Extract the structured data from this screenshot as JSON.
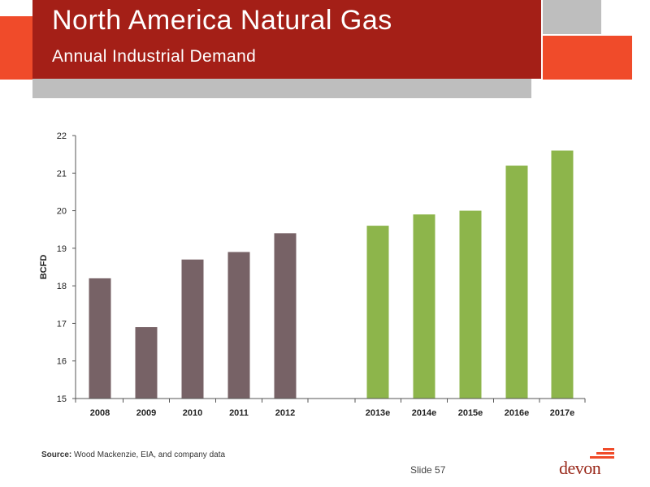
{
  "header": {
    "title": "North America Natural Gas",
    "subtitle": "Annual Industrial Demand"
  },
  "colors": {
    "title_band": "#a41f17",
    "accent_orange": "#f04b2a",
    "deco_gray": "#bebebe",
    "historical_bar": "#776266",
    "estimate_bar": "#8db54b"
  },
  "chart_data": {
    "type": "bar",
    "categories": [
      "2008",
      "2009",
      "2010",
      "2011",
      "2012",
      "2013e",
      "2014e",
      "2015e",
      "2016e",
      "2017e"
    ],
    "values": [
      18.2,
      16.9,
      18.7,
      18.9,
      19.4,
      19.6,
      19.9,
      20.0,
      21.2,
      21.6
    ],
    "groups": [
      "historical",
      "historical",
      "historical",
      "historical",
      "historical",
      "estimate",
      "estimate",
      "estimate",
      "estimate",
      "estimate"
    ],
    "ylabel": "BCFD",
    "xlabel": "",
    "ylim": [
      15,
      22
    ],
    "yticks": [
      15,
      16,
      17,
      18,
      19,
      20,
      21,
      22
    ],
    "grid": false,
    "legend": "none"
  },
  "footer": {
    "source_label": "Source:",
    "source_text": " Wood Mackenzie, EIA, and company data",
    "slide_number": "Slide 57",
    "logo_text": "devon"
  }
}
